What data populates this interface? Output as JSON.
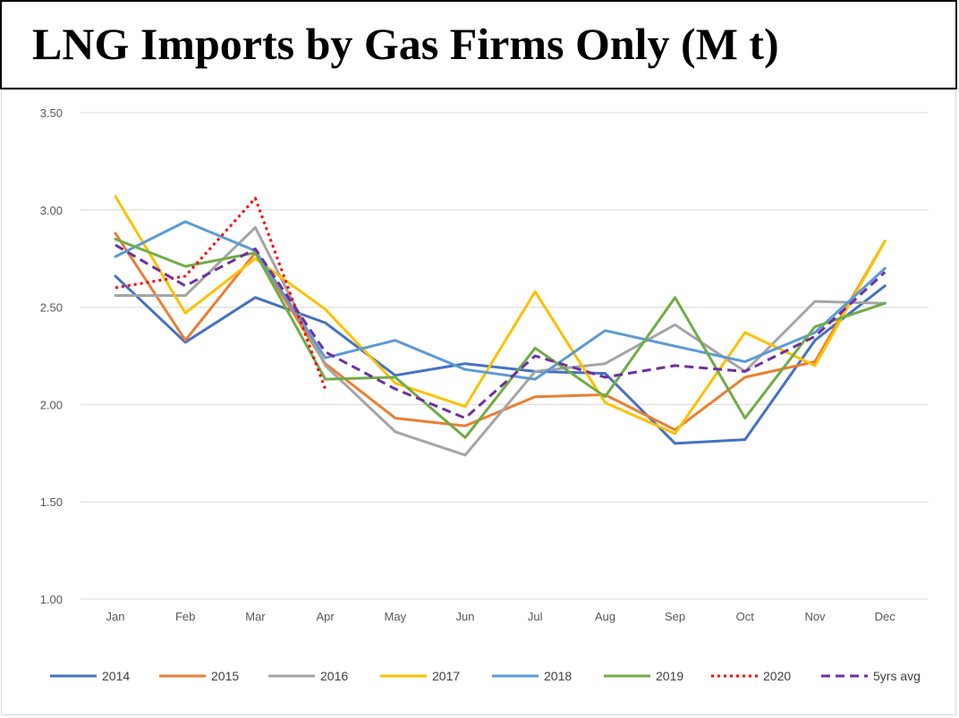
{
  "title": "LNG Imports by Gas Firms Only (M t)",
  "chart_data": {
    "type": "line",
    "title": "LNG Imports by Gas Firms Only (M t)",
    "xlabel": "",
    "ylabel": "",
    "categories": [
      "Jan",
      "Feb",
      "Mar",
      "Apr",
      "May",
      "Jun",
      "Jul",
      "Aug",
      "Sep",
      "Oct",
      "Nov",
      "Dec"
    ],
    "ylim": [
      1.0,
      3.5
    ],
    "yticks": [
      1.0,
      1.5,
      2.0,
      2.5,
      3.0,
      3.5
    ],
    "ytick_labels": [
      "1.00",
      "1.50",
      "2.00",
      "2.50",
      "3.00",
      "3.50"
    ],
    "grid": true,
    "legend_position": "bottom",
    "series": [
      {
        "name": "2014",
        "color": "#4472c4",
        "style": "solid",
        "values": [
          2.66,
          2.32,
          2.55,
          2.42,
          2.15,
          2.21,
          2.17,
          2.16,
          1.8,
          1.82,
          2.33,
          2.61
        ]
      },
      {
        "name": "2015",
        "color": "#ed7d31",
        "style": "solid",
        "values": [
          2.88,
          2.33,
          2.78,
          2.21,
          1.93,
          1.89,
          2.04,
          2.05,
          1.87,
          2.14,
          2.22,
          2.84
        ]
      },
      {
        "name": "2016",
        "color": "#a5a5a5",
        "style": "solid",
        "values": [
          2.56,
          2.56,
          2.91,
          2.2,
          1.86,
          1.74,
          2.17,
          2.21,
          2.41,
          2.17,
          2.53,
          2.52
        ]
      },
      {
        "name": "2017",
        "color": "#ffc000",
        "style": "solid",
        "values": [
          3.07,
          2.47,
          2.75,
          2.49,
          2.11,
          1.99,
          2.58,
          2.01,
          1.85,
          2.37,
          2.2,
          2.84
        ]
      },
      {
        "name": "2018",
        "color": "#5b9bd5",
        "style": "solid",
        "values": [
          2.76,
          2.94,
          2.79,
          2.24,
          2.33,
          2.18,
          2.13,
          2.38,
          2.3,
          2.22,
          2.37,
          2.7
        ]
      },
      {
        "name": "2019",
        "color": "#70ad47",
        "style": "solid",
        "values": [
          2.85,
          2.71,
          2.78,
          2.13,
          2.14,
          1.83,
          2.29,
          2.04,
          2.55,
          1.93,
          2.4,
          2.52
        ]
      },
      {
        "name": "2020",
        "color": "#ff0000",
        "style": "dotted",
        "values": [
          2.6,
          2.66,
          3.06,
          2.08,
          null,
          null,
          null,
          null,
          null,
          null,
          null,
          null
        ]
      },
      {
        "name": "5yrs avg",
        "color": "#7030a0",
        "style": "dashed",
        "values": [
          2.82,
          2.61,
          2.8,
          2.27,
          2.08,
          1.93,
          2.25,
          2.14,
          2.2,
          2.17,
          2.35,
          2.68
        ]
      }
    ]
  }
}
